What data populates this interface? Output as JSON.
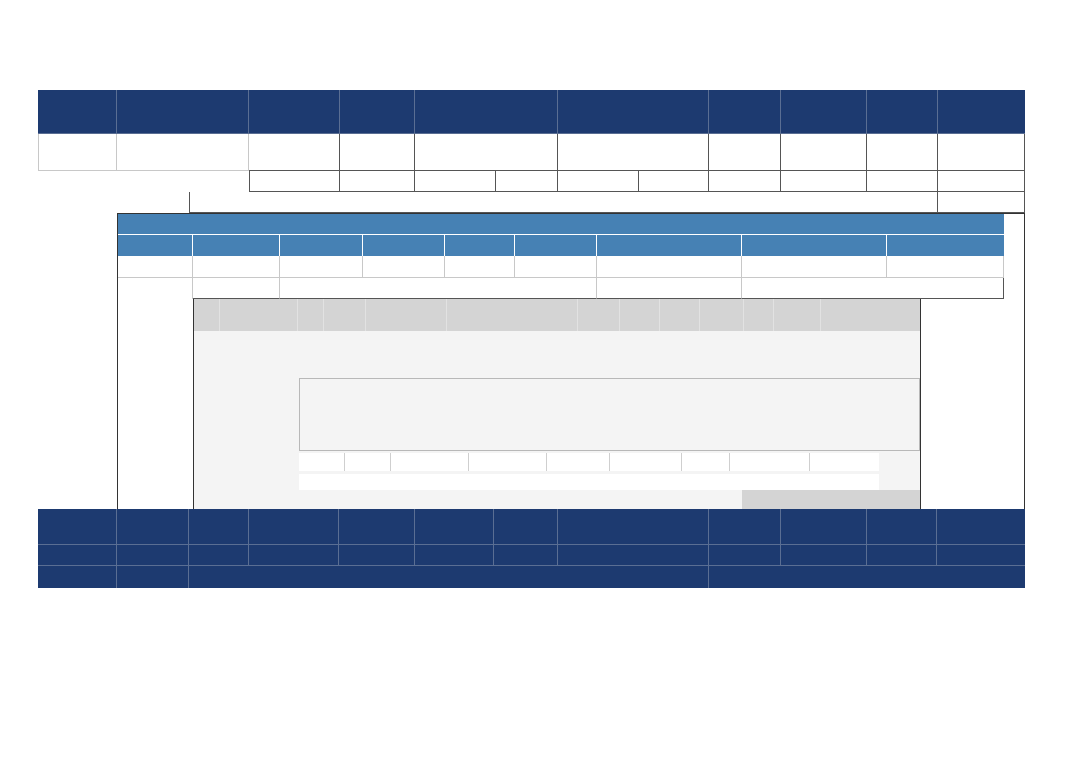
{
  "sheet": {
    "title": "",
    "header_row": [
      "",
      "",
      "",
      "",
      "",
      "",
      "",
      "",
      "",
      ""
    ],
    "row_1": [
      "",
      "",
      "",
      "",
      "",
      "",
      "",
      "",
      "",
      ""
    ],
    "sub_header_row": [
      "",
      "",
      "",
      "",
      "",
      "",
      "",
      "",
      "",
      "",
      "",
      ""
    ],
    "span_row": [
      "",
      ""
    ]
  },
  "embedded_table": {
    "banner": "",
    "columns": [
      "",
      "",
      "",
      "",
      "",
      "",
      "",
      "",
      ""
    ],
    "row_1": [
      "",
      "",
      "",
      "",
      "",
      "",
      "",
      "",
      ""
    ],
    "row_2": [
      "",
      "",
      "",
      "",
      ""
    ]
  },
  "embedded_panel": {
    "toolbar_items": [
      "",
      "",
      "",
      "",
      "",
      "",
      "",
      "",
      "",
      "",
      "",
      "",
      "",
      "",
      "",
      "",
      ""
    ],
    "input_value": "",
    "input_placeholder": "",
    "field_row": [
      "",
      "",
      "",
      "",
      "",
      "",
      "",
      "",
      "",
      "",
      "",
      ""
    ],
    "detail_value": "",
    "footer_label": ""
  },
  "footer_table": {
    "row_1": [
      "",
      "",
      "",
      "",
      "",
      "",
      "",
      "",
      "",
      "",
      "",
      "",
      ""
    ],
    "row_2": [
      "",
      "",
      "",
      "",
      "",
      "",
      "",
      "",
      "",
      "",
      "",
      "",
      ""
    ],
    "row_3": [
      "",
      "",
      "",
      ""
    ]
  },
  "colors": {
    "header_navy": "#1d3a70",
    "table_header_blue": "#4681b4",
    "panel_background": "#f4f4f4",
    "toolbar_grey": "#d4d4d4"
  }
}
